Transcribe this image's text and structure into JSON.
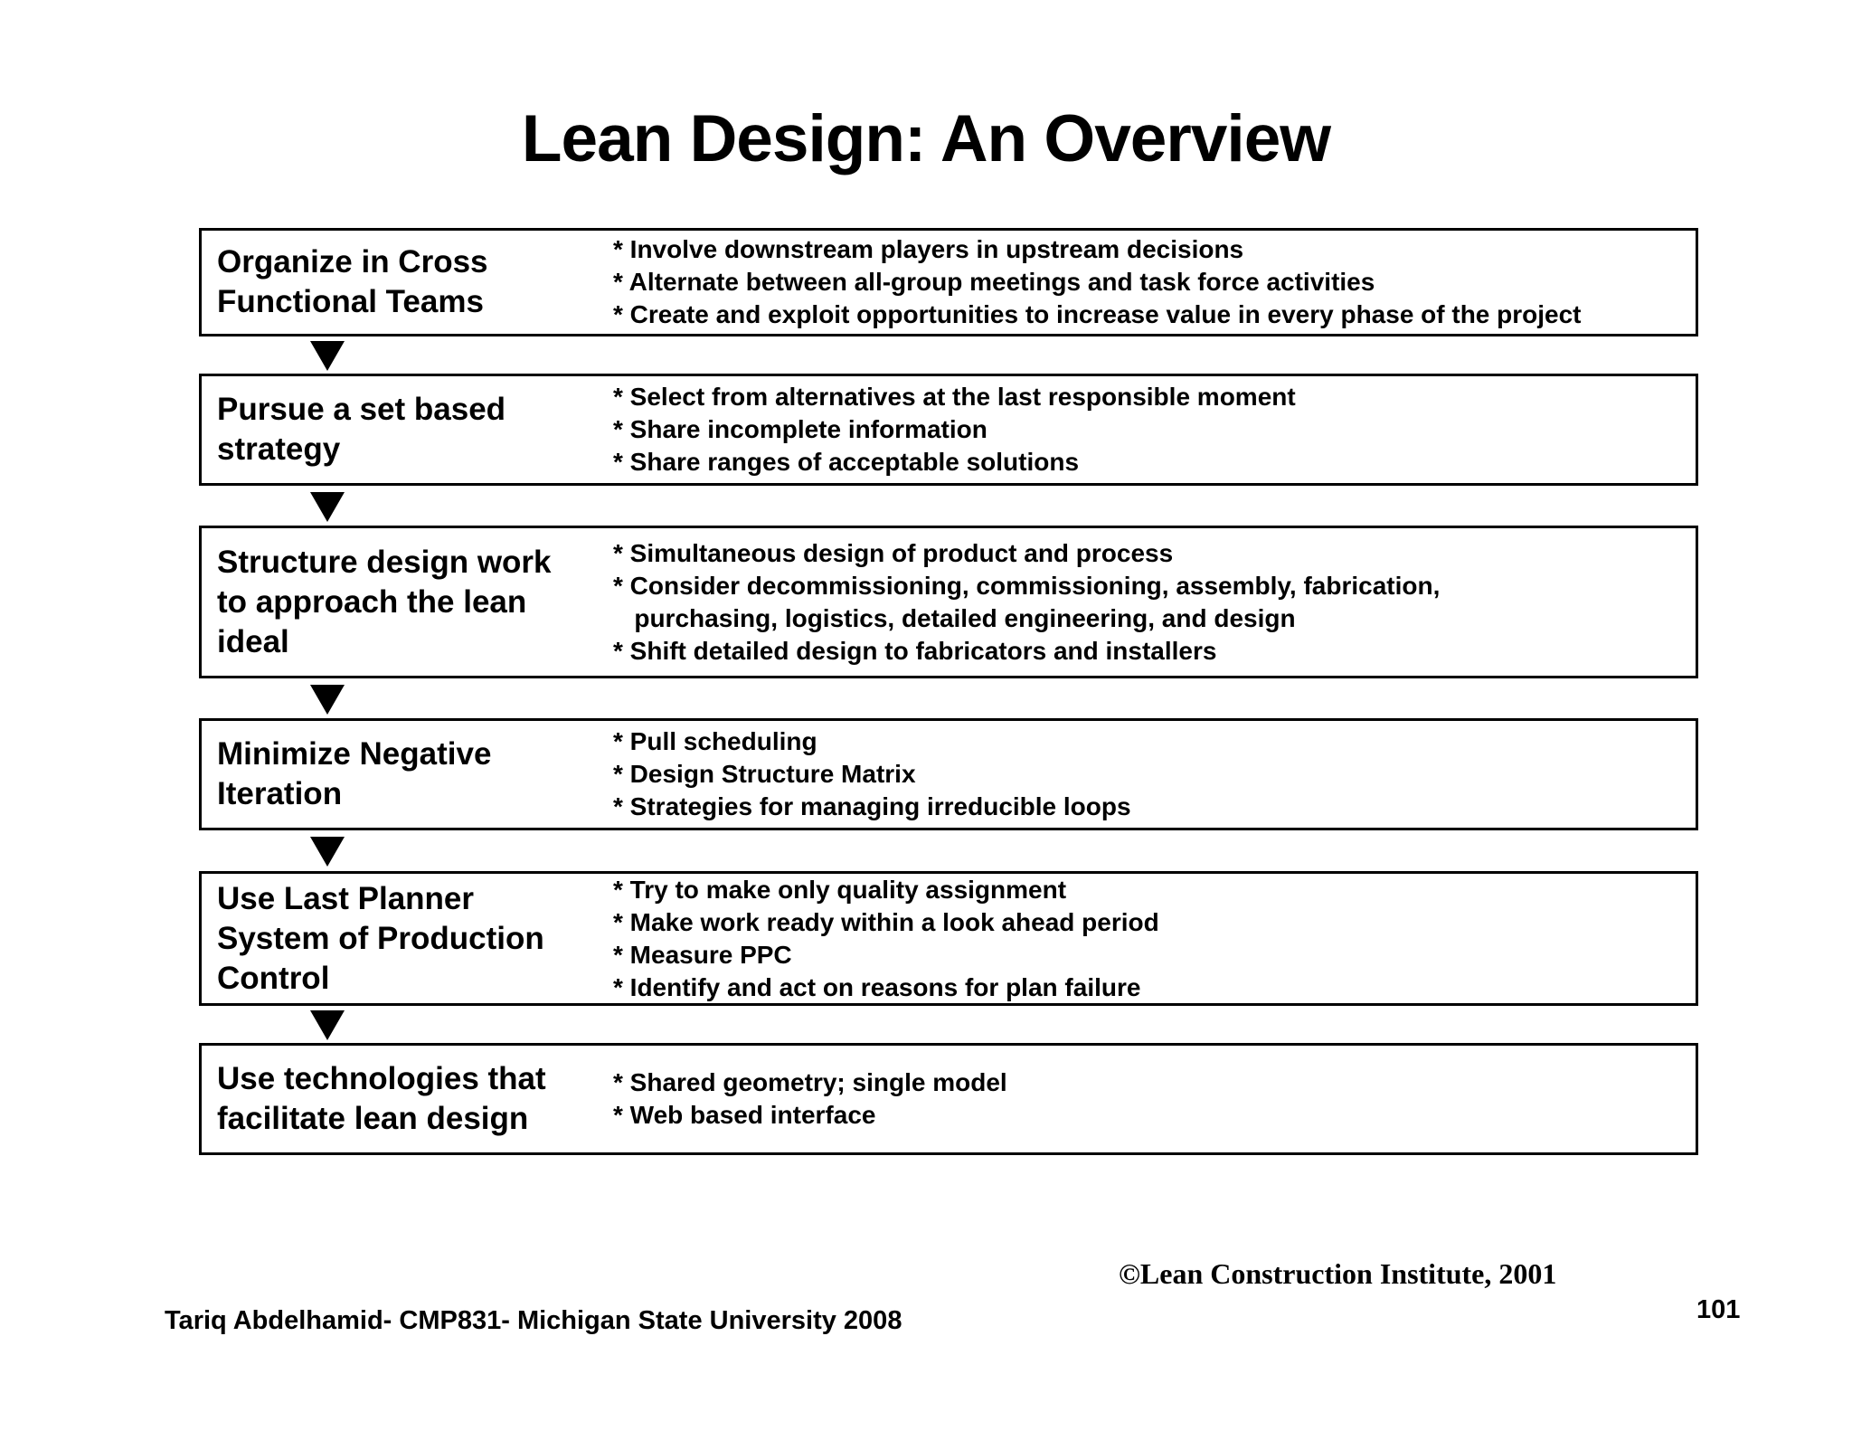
{
  "slide": {
    "title": "Lean Design: An Overview",
    "colors": {
      "background": "#ffffff",
      "text": "#000000",
      "box_border": "#000000",
      "arrow": "#000000"
    },
    "icons": {
      "down_arrow": "solid-black-triangle-pointing-down"
    },
    "steps": [
      {
        "heading": "Organize in Cross\nFunctional Teams",
        "bullets": [
          "* Involve downstream players in upstream decisions",
          "* Alternate between all-group meetings and task force activities",
          "* Create and exploit opportunities to increase value in every phase of the project"
        ]
      },
      {
        "heading": "Pursue a set based\nstrategy",
        "bullets": [
          "* Select from alternatives at the last responsible moment",
          "* Share incomplete information",
          "* Share ranges of acceptable solutions"
        ]
      },
      {
        "heading": "Structure design work\nto approach the lean\nideal",
        "bullets": [
          "* Simultaneous design of product and process",
          "* Consider decommissioning, commissioning, assembly, fabrication,\n   purchasing, logistics, detailed engineering, and design",
          "* Shift detailed design to fabricators and installers"
        ]
      },
      {
        "heading": "Minimize Negative\nIteration",
        "bullets": [
          "* Pull scheduling",
          "* Design Structure Matrix",
          "* Strategies for managing irreducible loops"
        ]
      },
      {
        "heading": "Use Last Planner\nSystem of Production\nControl",
        "bullets": [
          "* Try to make only quality assignment",
          "* Make work ready within a look ahead period",
          "* Measure PPC",
          "* Identify and act on reasons for plan failure"
        ]
      },
      {
        "heading": "Use technologies that\nfacilitate lean design",
        "bullets": [
          "* Shared geometry; single model",
          "* Web based interface"
        ]
      }
    ],
    "footer": {
      "credit": "©Lean Construction Institute, 2001",
      "author": "Tariq Abdelhamid- CMP831- Michigan State University 2008",
      "page_number": "101"
    }
  }
}
